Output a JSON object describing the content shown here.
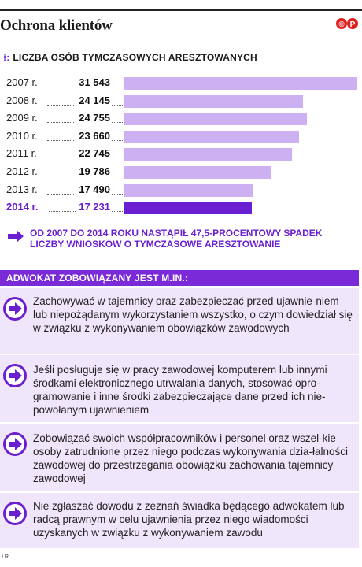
{
  "header": {
    "title": "Ochrona klientów",
    "logo_text": "©P"
  },
  "chart_data": {
    "type": "bar",
    "title": "Liczba osób tymczasowych aresztowanych",
    "categories": [
      "2007 r.",
      "2008 r.",
      "2009 r.",
      "2010 r.",
      "2011 r.",
      "2012 r.",
      "2013 r.",
      "2014 r."
    ],
    "values": [
      31543,
      24145,
      24755,
      23660,
      22745,
      19786,
      17490,
      17231
    ],
    "value_labels": [
      "31 543",
      "24 145",
      "24 755",
      "23 660",
      "22 745",
      "19 786",
      "17 490",
      "17 231"
    ],
    "highlight_index": 7,
    "orientation": "horizontal",
    "colors": {
      "bar": "#cdb0f2",
      "highlight": "#6a1fd0"
    },
    "note": "Od 2007 do 2014 roku nastąpił 47,5-procentowy spadek liczby wniosków o tymczasowe aresztowanie"
  },
  "section": {
    "title": "Adwokat zobowiązany jest m.in.:",
    "items": [
      "Zachowywać w tajemnicy oraz zabezpieczać przed ujawnie-niem lub niepożądanym wykorzystaniem wszystko, o czym dowiedział się w związku z wykonywaniem obowiązków zawodowych",
      "Jeśli posługuje się w pracy zawodowej komputerem lub innymi środkami elektronicznego utrwalania danych, stosować opro-gramowanie i inne środki zabezpieczające dane przed ich nie-powołanym ujawnieniem",
      "Zobowiązać swoich współpracowników i personel oraz wszel-kie osoby zatrudnione przez niego podczas wykonywania dzia-łalności zawodowej do przestrzegania obowiązku zachowania tajemnicy zawodowej",
      "Nie zgłaszać dowodu z zeznań świadka będącego adwokatem lub radcą prawnym w celu ujawnienia przez niego wiadomości uzyskanych w związku z wykonywaniem zawodu"
    ]
  },
  "footer": {
    "mark": "ŁR"
  },
  "colors": {
    "accent": "#6a1fd0",
    "section_bg": "#7a2ad6",
    "item_bg": "#f0e6fb"
  }
}
